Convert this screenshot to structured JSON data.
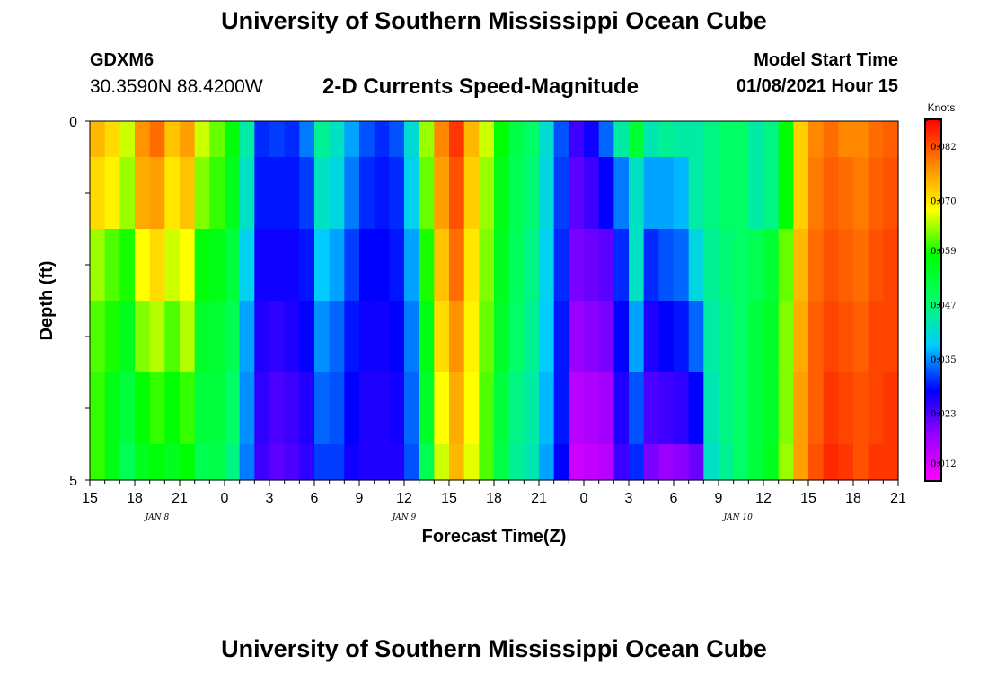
{
  "header": {
    "title": "University of Southern Mississippi Ocean Cube",
    "station_id": "GDXM6",
    "station_coords": "30.3590N 88.4200W",
    "subtitle": "2-D Currents Speed-Magnitude",
    "model_start_label": "Model Start Time",
    "model_start_value": "01/08/2021 Hour 15"
  },
  "footer": {
    "title": "University of Southern Mississippi Ocean Cube"
  },
  "chart_data": {
    "type": "heatmap",
    "title": "2-D Currents Speed-Magnitude",
    "xlabel": "Forecast Time(Z)",
    "ylabel": "Depth (ft)",
    "x_start_hour": 15,
    "x_hours_total": 54,
    "x_ticks": [
      "15",
      "18",
      "21",
      "0",
      "3",
      "6",
      "9",
      "12",
      "15",
      "18",
      "21",
      "0",
      "3",
      "6",
      "9",
      "12",
      "15",
      "18",
      "21"
    ],
    "date_labels": [
      {
        "text": "JAN 8",
        "hour": 4.5
      },
      {
        "text": "JAN 9",
        "hour": 21
      },
      {
        "text": "JAN 10",
        "hour": 43.3
      }
    ],
    "y_ticks": [
      "0",
      "5"
    ],
    "ylim": [
      0,
      5
    ],
    "colorbar": {
      "units": "Knots",
      "ticks": [
        "0.082",
        "0.070",
        "0.059",
        "0.047",
        "0.035",
        "0.023",
        "0.012"
      ],
      "range": [
        0.008,
        0.088
      ],
      "colors": [
        "#ff00ff",
        "#9900ff",
        "#0000ff",
        "#00ccff",
        "#00ff66",
        "#00ff00",
        "#ffff00",
        "#ff8800",
        "#ff0000"
      ]
    },
    "depth_rows": 5,
    "hour_values": [
      [
        0.074,
        0.071,
        0.064,
        0.061,
        0.06,
        0.06
      ],
      [
        0.071,
        0.069,
        0.061,
        0.059,
        0.056,
        0.056
      ],
      [
        0.066,
        0.064,
        0.059,
        0.055,
        0.052,
        0.05
      ],
      [
        0.077,
        0.075,
        0.068,
        0.063,
        0.058,
        0.055
      ],
      [
        0.08,
        0.076,
        0.071,
        0.065,
        0.06,
        0.057
      ],
      [
        0.073,
        0.07,
        0.066,
        0.061,
        0.058,
        0.055
      ],
      [
        0.076,
        0.073,
        0.068,
        0.065,
        0.06,
        0.058
      ],
      [
        0.066,
        0.063,
        0.057,
        0.054,
        0.052,
        0.05
      ],
      [
        0.062,
        0.06,
        0.056,
        0.053,
        0.052,
        0.051
      ],
      [
        0.057,
        0.055,
        0.052,
        0.05,
        0.048,
        0.046
      ],
      [
        0.044,
        0.042,
        0.039,
        0.036,
        0.035,
        0.034
      ],
      [
        0.03,
        0.029,
        0.027,
        0.026,
        0.025,
        0.024
      ],
      [
        0.031,
        0.029,
        0.027,
        0.025,
        0.023,
        0.022
      ],
      [
        0.03,
        0.029,
        0.027,
        0.026,
        0.024,
        0.023
      ],
      [
        0.034,
        0.031,
        0.029,
        0.028,
        0.026,
        0.025
      ],
      [
        0.045,
        0.042,
        0.038,
        0.035,
        0.033,
        0.031
      ],
      [
        0.042,
        0.04,
        0.036,
        0.033,
        0.032,
        0.031
      ],
      [
        0.036,
        0.034,
        0.031,
        0.029,
        0.028,
        0.027
      ],
      [
        0.032,
        0.03,
        0.028,
        0.027,
        0.026,
        0.026
      ],
      [
        0.03,
        0.029,
        0.028,
        0.027,
        0.026,
        0.026
      ],
      [
        0.032,
        0.03,
        0.029,
        0.028,
        0.027,
        0.026
      ],
      [
        0.041,
        0.039,
        0.036,
        0.034,
        0.033,
        0.032
      ],
      [
        0.064,
        0.062,
        0.059,
        0.056,
        0.054,
        0.05
      ],
      [
        0.078,
        0.076,
        0.073,
        0.071,
        0.068,
        0.066
      ],
      [
        0.084,
        0.082,
        0.08,
        0.077,
        0.075,
        0.074
      ],
      [
        0.074,
        0.072,
        0.07,
        0.069,
        0.068,
        0.067
      ],
      [
        0.066,
        0.064,
        0.063,
        0.062,
        0.061,
        0.061
      ],
      [
        0.058,
        0.056,
        0.055,
        0.054,
        0.052,
        0.051
      ],
      [
        0.051,
        0.05,
        0.049,
        0.048,
        0.046,
        0.045
      ],
      [
        0.048,
        0.047,
        0.046,
        0.045,
        0.044,
        0.043
      ],
      [
        0.041,
        0.04,
        0.039,
        0.038,
        0.037,
        0.036
      ],
      [
        0.032,
        0.031,
        0.03,
        0.029,
        0.029,
        0.028
      ],
      [
        0.024,
        0.022,
        0.02,
        0.018,
        0.015,
        0.013
      ],
      [
        0.027,
        0.024,
        0.021,
        0.019,
        0.016,
        0.014
      ],
      [
        0.033,
        0.028,
        0.022,
        0.02,
        0.017,
        0.015
      ],
      [
        0.044,
        0.034,
        0.03,
        0.028,
        0.026,
        0.024
      ],
      [
        0.053,
        0.042,
        0.042,
        0.036,
        0.032,
        0.03
      ],
      [
        0.043,
        0.036,
        0.03,
        0.026,
        0.023,
        0.02
      ],
      [
        0.045,
        0.036,
        0.032,
        0.028,
        0.024,
        0.018
      ],
      [
        0.044,
        0.037,
        0.033,
        0.029,
        0.025,
        0.019
      ],
      [
        0.044,
        0.044,
        0.04,
        0.033,
        0.028,
        0.021
      ],
      [
        0.046,
        0.046,
        0.045,
        0.044,
        0.043,
        0.042
      ],
      [
        0.048,
        0.048,
        0.047,
        0.046,
        0.046,
        0.045
      ],
      [
        0.048,
        0.048,
        0.048,
        0.048,
        0.048,
        0.048
      ],
      [
        0.044,
        0.044,
        0.05,
        0.052,
        0.052,
        0.052
      ],
      [
        0.046,
        0.046,
        0.053,
        0.054,
        0.054,
        0.055
      ],
      [
        0.058,
        0.058,
        0.062,
        0.063,
        0.063,
        0.064
      ],
      [
        0.072,
        0.072,
        0.074,
        0.075,
        0.076,
        0.076
      ],
      [
        0.078,
        0.079,
        0.08,
        0.081,
        0.081,
        0.082
      ],
      [
        0.08,
        0.081,
        0.082,
        0.083,
        0.084,
        0.085
      ],
      [
        0.078,
        0.08,
        0.081,
        0.082,
        0.083,
        0.084
      ],
      [
        0.078,
        0.079,
        0.08,
        0.081,
        0.082,
        0.082
      ],
      [
        0.08,
        0.081,
        0.082,
        0.083,
        0.083,
        0.084
      ],
      [
        0.081,
        0.082,
        0.083,
        0.083,
        0.084,
        0.084
      ]
    ]
  }
}
